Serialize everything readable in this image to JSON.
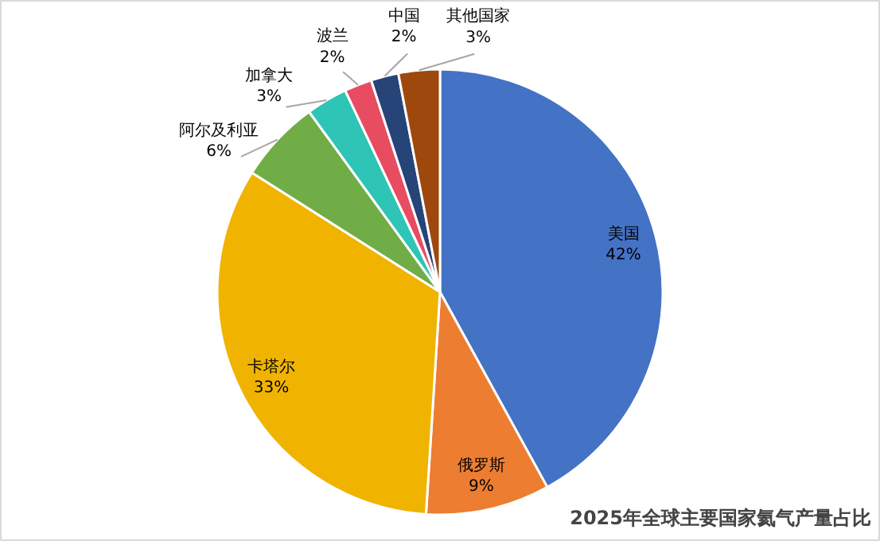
{
  "chart_data": {
    "type": "pie",
    "title": "2025年全球主要国家氦气产量占比",
    "categories": [
      "美国",
      "俄罗斯",
      "卡塔尔",
      "阿尔及利亚",
      "加拿大",
      "波兰",
      "中国",
      "其他国家"
    ],
    "values": [
      42,
      9,
      33,
      6,
      3,
      2,
      2,
      3
    ],
    "colors": [
      "#4472c4",
      "#ed7d31",
      "#f0b400",
      "#70ad47",
      "#2ec4b6",
      "#e84c61",
      "#264478",
      "#9e480e"
    ],
    "value_labels": [
      "42%",
      "9%",
      "33%",
      "6%",
      "3%",
      "2%",
      "2%",
      "3%"
    ]
  }
}
